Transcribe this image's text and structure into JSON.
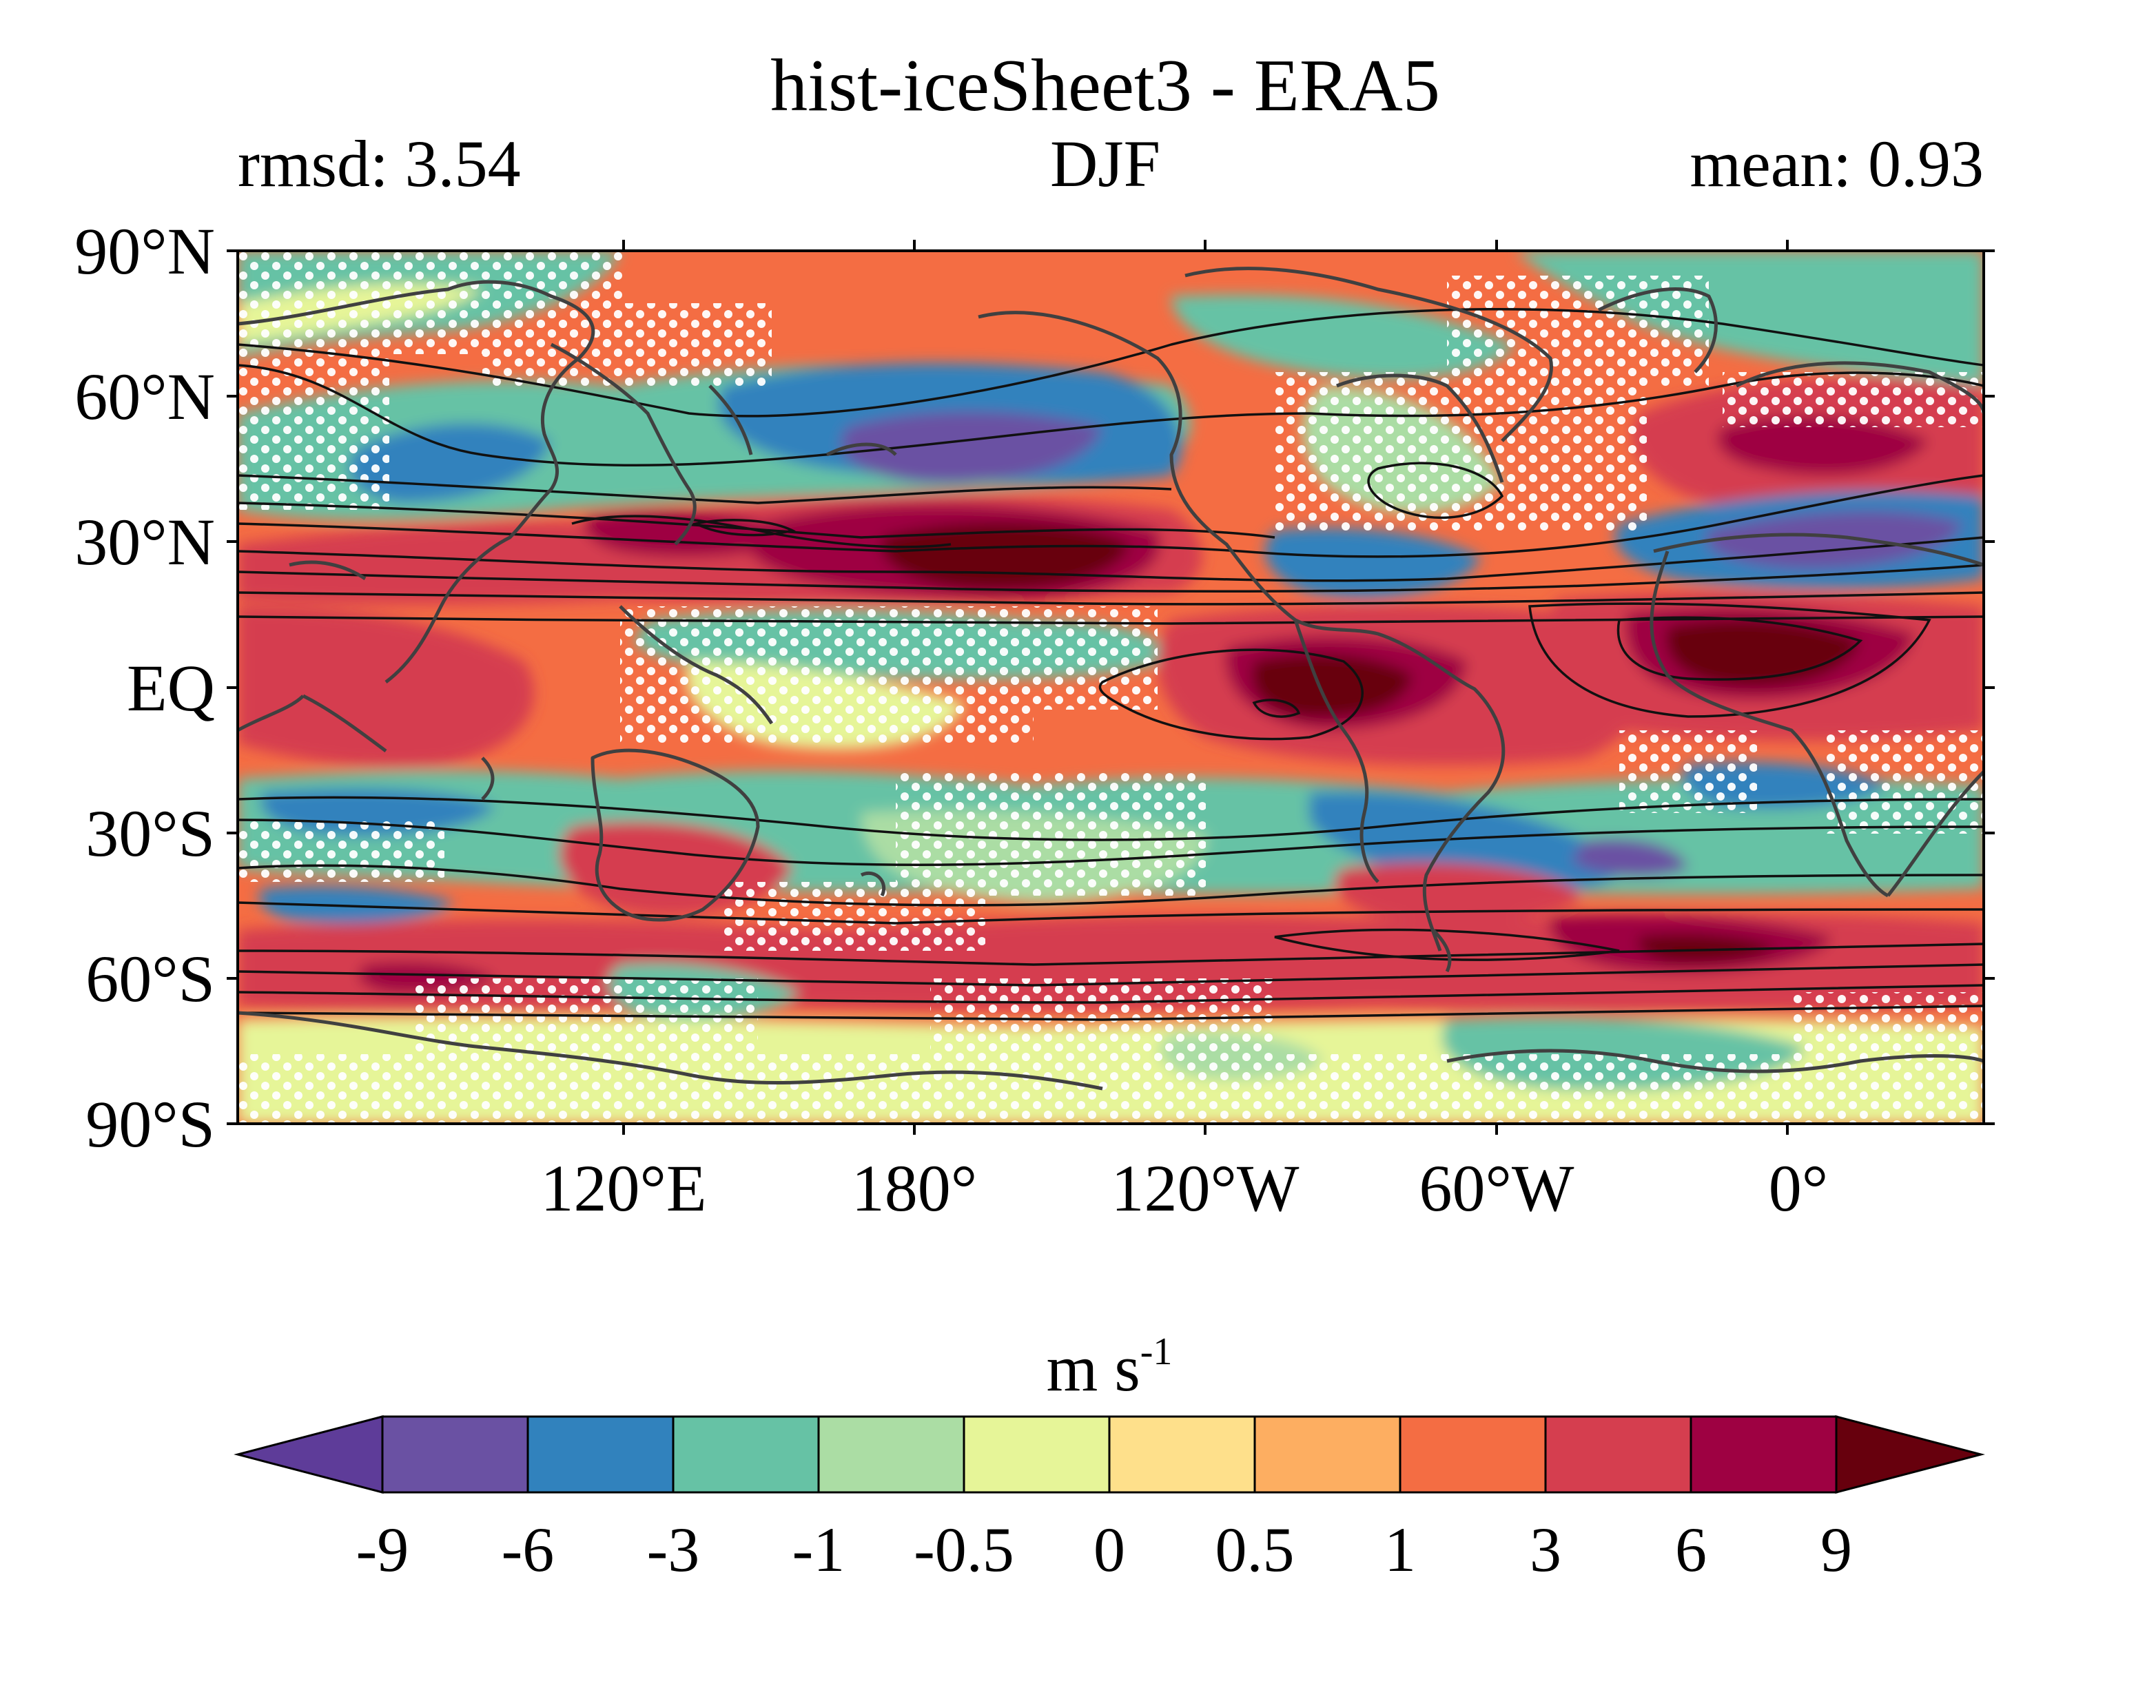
{
  "title": "hist-iceSheet3 - ERA5",
  "stat_left": "rmsd: 3.54",
  "season": "DJF",
  "stat_right": "mean: 0.93",
  "lat_ticks": [
    "90°N",
    "60°N",
    "30°N",
    "EQ",
    "30°S",
    "60°S",
    "90°S"
  ],
  "lon_ticks": [
    "120°E",
    "180°",
    "120°W",
    "60°W",
    "0°"
  ],
  "colorbar": {
    "unit_base": "m s",
    "unit_exp": "-1",
    "ticks": [
      "-9",
      "-6",
      "-3",
      "-1",
      "-0.5",
      "0",
      "0.5",
      "1",
      "3",
      "6",
      "9"
    ],
    "colors": [
      "#5e3c99",
      "#6a51a3",
      "#3182bd",
      "#66c2a5",
      "#abdda4",
      "#e6f598",
      "#fee08b",
      "#fdae61",
      "#f46d43",
      "#d53e4f",
      "#9e0142",
      "#67000d"
    ]
  },
  "chart_data": {
    "type": "heatmap",
    "title": "hist-iceSheet3 - ERA5",
    "subtitle_left": "rmsd: 3.54",
    "subtitle_center": "DJF",
    "subtitle_right": "mean: 0.93",
    "unit": "m s-1",
    "levels": [
      -9,
      -6,
      -3,
      -1,
      -0.5,
      0,
      0.5,
      1,
      3,
      6,
      9
    ],
    "lat_range": [
      -90,
      90
    ],
    "x_ticks": [
      "120°E",
      "180°",
      "120°W",
      "60°W",
      "0°"
    ],
    "y_ticks": [
      "90°N",
      "60°N",
      "30°N",
      "EQ",
      "30°S",
      "60°S",
      "90°S"
    ],
    "overlays": [
      "coastlines",
      "climatology contours",
      "stippling"
    ],
    "anomaly_cores": [
      {
        "region": "North Pacific ~30°N",
        "value": 9
      },
      {
        "region": "Tropical Atlantic / South America ~0°",
        "value": 9
      },
      {
        "region": "Tropical Atlantic / Africa ~5°N",
        "value": 9
      },
      {
        "region": "North Pacific ~45°N",
        "value": -6
      },
      {
        "region": "North Africa ~30°N",
        "value": -6
      },
      {
        "region": "Southern Ocean ~55°S",
        "value": 6
      }
    ]
  }
}
